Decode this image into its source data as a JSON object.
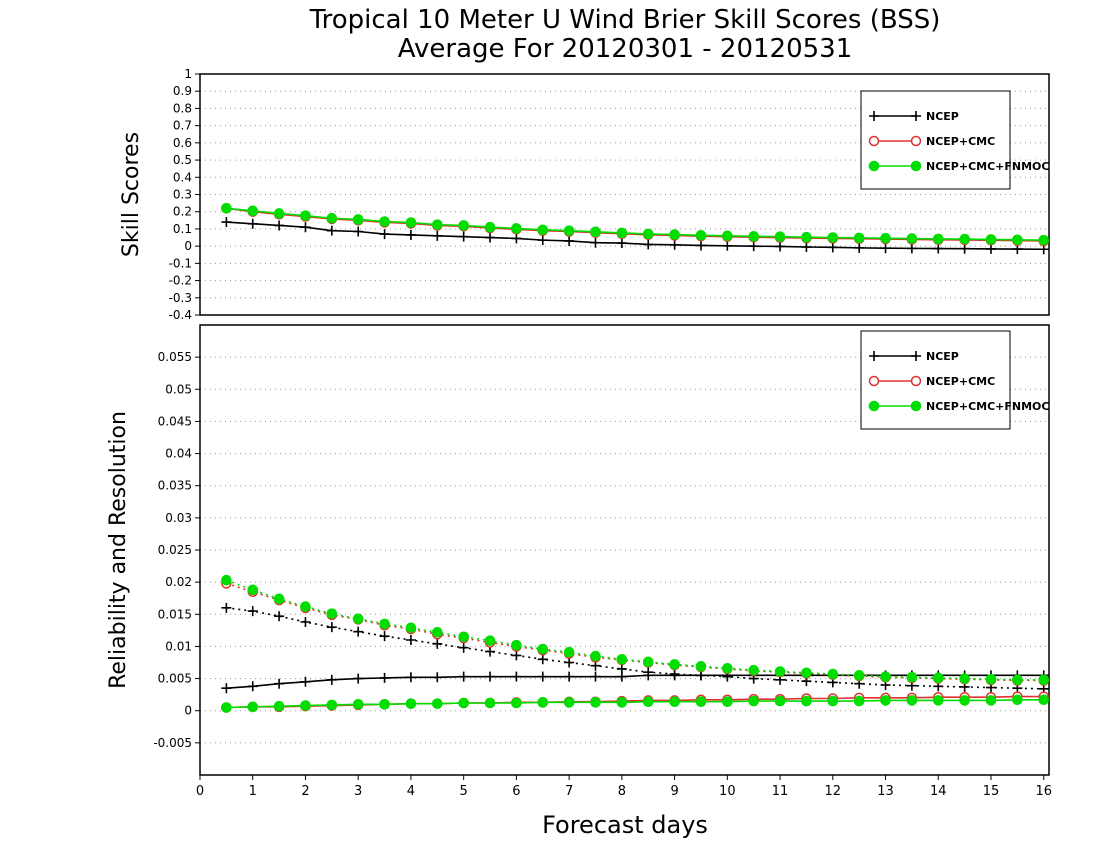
{
  "title_line1": "Tropical 10 Meter U Wind Brier Skill Scores (BSS)",
  "title_line2": "Average For 20120301 - 20120531",
  "colors": {
    "ncep": "#000000",
    "ncep_cmc": "#e03030",
    "ncep_cmc_fnmoc": "#00dd00",
    "grid": "#999999"
  },
  "chart_data": [
    {
      "type": "line",
      "ylabel": "Skill Scores",
      "xlabel": "",
      "xlim": [
        0,
        16.1
      ],
      "ylim": [
        -0.4,
        1
      ],
      "yticks": [
        -0.4,
        -0.3,
        -0.2,
        -0.1,
        0,
        0.1,
        0.2,
        0.3,
        0.4,
        0.5,
        0.6,
        0.7,
        0.8,
        0.9,
        1
      ],
      "ytick_labels": [
        "-0.4",
        "-0.3",
        "-0.2",
        "-0.1",
        "0",
        "0.1",
        "0.2",
        "0.3",
        "0.4",
        "0.5",
        "0.6",
        "0.7",
        "0.8",
        "0.9",
        "1"
      ],
      "grid": true,
      "legend_position": "top-right",
      "x": [
        0.5,
        1,
        1.5,
        2,
        2.5,
        3,
        3.5,
        4,
        4.5,
        5,
        5.5,
        6,
        6.5,
        7,
        7.5,
        8,
        8.5,
        9,
        9.5,
        10,
        10.5,
        11,
        11.5,
        12,
        12.5,
        13,
        13.5,
        14,
        14.5,
        15,
        15.5,
        16
      ],
      "series": [
        {
          "name": "NCEP",
          "color": "#000000",
          "marker": "plus",
          "style": "solid",
          "values": [
            0.14,
            0.13,
            0.12,
            0.11,
            0.09,
            0.085,
            0.07,
            0.065,
            0.06,
            0.055,
            0.05,
            0.045,
            0.035,
            0.03,
            0.02,
            0.018,
            0.01,
            0.008,
            0.004,
            0.002,
            0,
            -0.002,
            -0.005,
            -0.007,
            -0.01,
            -0.012,
            -0.013,
            -0.014,
            -0.015,
            -0.016,
            -0.017,
            -0.018
          ]
        },
        {
          "name": "NCEP+CMC",
          "color": "#e03030",
          "marker": "circle-open",
          "style": "solid",
          "values": [
            0.22,
            0.2,
            0.185,
            0.172,
            0.158,
            0.15,
            0.138,
            0.132,
            0.12,
            0.115,
            0.105,
            0.098,
            0.09,
            0.085,
            0.078,
            0.072,
            0.066,
            0.062,
            0.058,
            0.055,
            0.052,
            0.05,
            0.047,
            0.045,
            0.043,
            0.041,
            0.039,
            0.037,
            0.036,
            0.034,
            0.032,
            0.03
          ]
        },
        {
          "name": "NCEP+CMC+FNMOC",
          "color": "#00dd00",
          "marker": "circle-filled",
          "style": "solid",
          "values": [
            0.22,
            0.205,
            0.19,
            0.177,
            0.162,
            0.155,
            0.143,
            0.137,
            0.125,
            0.12,
            0.11,
            0.103,
            0.095,
            0.09,
            0.083,
            0.077,
            0.071,
            0.067,
            0.063,
            0.06,
            0.057,
            0.055,
            0.052,
            0.05,
            0.048,
            0.046,
            0.044,
            0.042,
            0.041,
            0.039,
            0.037,
            0.035
          ]
        }
      ]
    },
    {
      "type": "line",
      "ylabel": "Reliability and Resolution",
      "xlabel": "Forecast days",
      "xlim": [
        0,
        16.1
      ],
      "ylim": [
        -0.01,
        0.06
      ],
      "yticks": [
        -0.005,
        0,
        0.005,
        0.01,
        0.015,
        0.02,
        0.025,
        0.03,
        0.035,
        0.04,
        0.045,
        0.05,
        0.055
      ],
      "ytick_labels": [
        "-0.005",
        "0",
        "0.005",
        "0.01",
        "0.015",
        "0.02",
        "0.025",
        "0.03",
        "0.035",
        "0.04",
        "0.045",
        "0.05",
        "0.055"
      ],
      "xticks": [
        0,
        1,
        2,
        3,
        4,
        5,
        6,
        7,
        8,
        9,
        10,
        11,
        12,
        13,
        14,
        15,
        16
      ],
      "xtick_labels": [
        "0",
        "1",
        "2",
        "3",
        "4",
        "5",
        "6",
        "7",
        "8",
        "9",
        "10",
        "11",
        "12",
        "13",
        "14",
        "15",
        "16"
      ],
      "grid": true,
      "legend_position": "top-right",
      "x": [
        0.5,
        1,
        1.5,
        2,
        2.5,
        3,
        3.5,
        4,
        4.5,
        5,
        5.5,
        6,
        6.5,
        7,
        7.5,
        8,
        8.5,
        9,
        9.5,
        10,
        10.5,
        11,
        11.5,
        12,
        12.5,
        13,
        13.5,
        14,
        14.5,
        15,
        15.5,
        16
      ],
      "series": [
        {
          "name": "NCEP",
          "color": "#000000",
          "marker": "plus",
          "style": "dotted",
          "legend": false,
          "values": [
            0.016,
            0.0155,
            0.0147,
            0.0138,
            0.013,
            0.0123,
            0.0116,
            0.011,
            0.0104,
            0.0098,
            0.0092,
            0.0086,
            0.008,
            0.0075,
            0.007,
            0.0065,
            0.006,
            0.0057,
            0.0055,
            0.0053,
            0.005,
            0.0048,
            0.0046,
            0.0044,
            0.0042,
            0.004,
            0.0039,
            0.0038,
            0.0037,
            0.0036,
            0.0035,
            0.0034
          ]
        },
        {
          "name": "NCEP",
          "color": "#000000",
          "marker": "plus",
          "style": "solid",
          "values": [
            0.0035,
            0.0038,
            0.0042,
            0.0045,
            0.0048,
            0.005,
            0.0051,
            0.0052,
            0.0052,
            0.0053,
            0.0053,
            0.0053,
            0.0053,
            0.0053,
            0.0053,
            0.0053,
            0.0055,
            0.0055,
            0.0055,
            0.0055,
            0.0055,
            0.0055,
            0.0055,
            0.0055,
            0.0055,
            0.0055,
            0.0055,
            0.0055,
            0.0055,
            0.0055,
            0.0055,
            0.0055
          ]
        },
        {
          "name": "NCEP+CMC",
          "color": "#e03030",
          "marker": "circle-open",
          "style": "dotted",
          "legend": false,
          "values": [
            0.0198,
            0.0185,
            0.0172,
            0.016,
            0.0149,
            0.0142,
            0.0133,
            0.0127,
            0.0119,
            0.0113,
            0.0106,
            0.01,
            0.0094,
            0.0089,
            0.0083,
            0.0079,
            0.0075,
            0.0071,
            0.0068,
            0.0065,
            0.0062,
            0.006,
            0.0058,
            0.0056,
            0.0054,
            0.0052,
            0.0051,
            0.005,
            0.0049,
            0.0048,
            0.0047,
            0.0047
          ]
        },
        {
          "name": "NCEP+CMC",
          "color": "#e03030",
          "marker": "circle-open",
          "style": "solid",
          "values": [
            0.0005,
            0.0006,
            0.0006,
            0.0007,
            0.0008,
            0.0009,
            0.001,
            0.0011,
            0.0011,
            0.0012,
            0.0012,
            0.0013,
            0.0013,
            0.0014,
            0.0014,
            0.0015,
            0.0016,
            0.0016,
            0.0017,
            0.0017,
            0.0018,
            0.0018,
            0.0019,
            0.0019,
            0.002,
            0.002,
            0.002,
            0.0021,
            0.0021,
            0.0021,
            0.0022,
            0.0022
          ]
        },
        {
          "name": "NCEP+CMC+FNMOC",
          "color": "#00dd00",
          "marker": "circle-filled",
          "style": "dotted",
          "legend": false,
          "values": [
            0.0203,
            0.0188,
            0.0174,
            0.0162,
            0.0151,
            0.0143,
            0.0135,
            0.0129,
            0.0122,
            0.0115,
            0.0109,
            0.0102,
            0.0096,
            0.0091,
            0.0085,
            0.008,
            0.0076,
            0.0072,
            0.0069,
            0.0066,
            0.0063,
            0.0061,
            0.0059,
            0.0057,
            0.0055,
            0.0053,
            0.0052,
            0.0051,
            0.005,
            0.0049,
            0.0048,
            0.0048
          ]
        },
        {
          "name": "NCEP+CMC+FNMOC",
          "color": "#00dd00",
          "marker": "circle-filled",
          "style": "solid",
          "values": [
            0.0005,
            0.0006,
            0.0007,
            0.0008,
            0.0009,
            0.001,
            0.001,
            0.0011,
            0.0011,
            0.0012,
            0.0012,
            0.0012,
            0.0013,
            0.0013,
            0.0013,
            0.0013,
            0.0014,
            0.0014,
            0.0014,
            0.0014,
            0.0015,
            0.0015,
            0.0015,
            0.0015,
            0.0015,
            0.0016,
            0.0016,
            0.0016,
            0.0016,
            0.0016,
            0.0017,
            0.0017
          ]
        }
      ]
    }
  ]
}
